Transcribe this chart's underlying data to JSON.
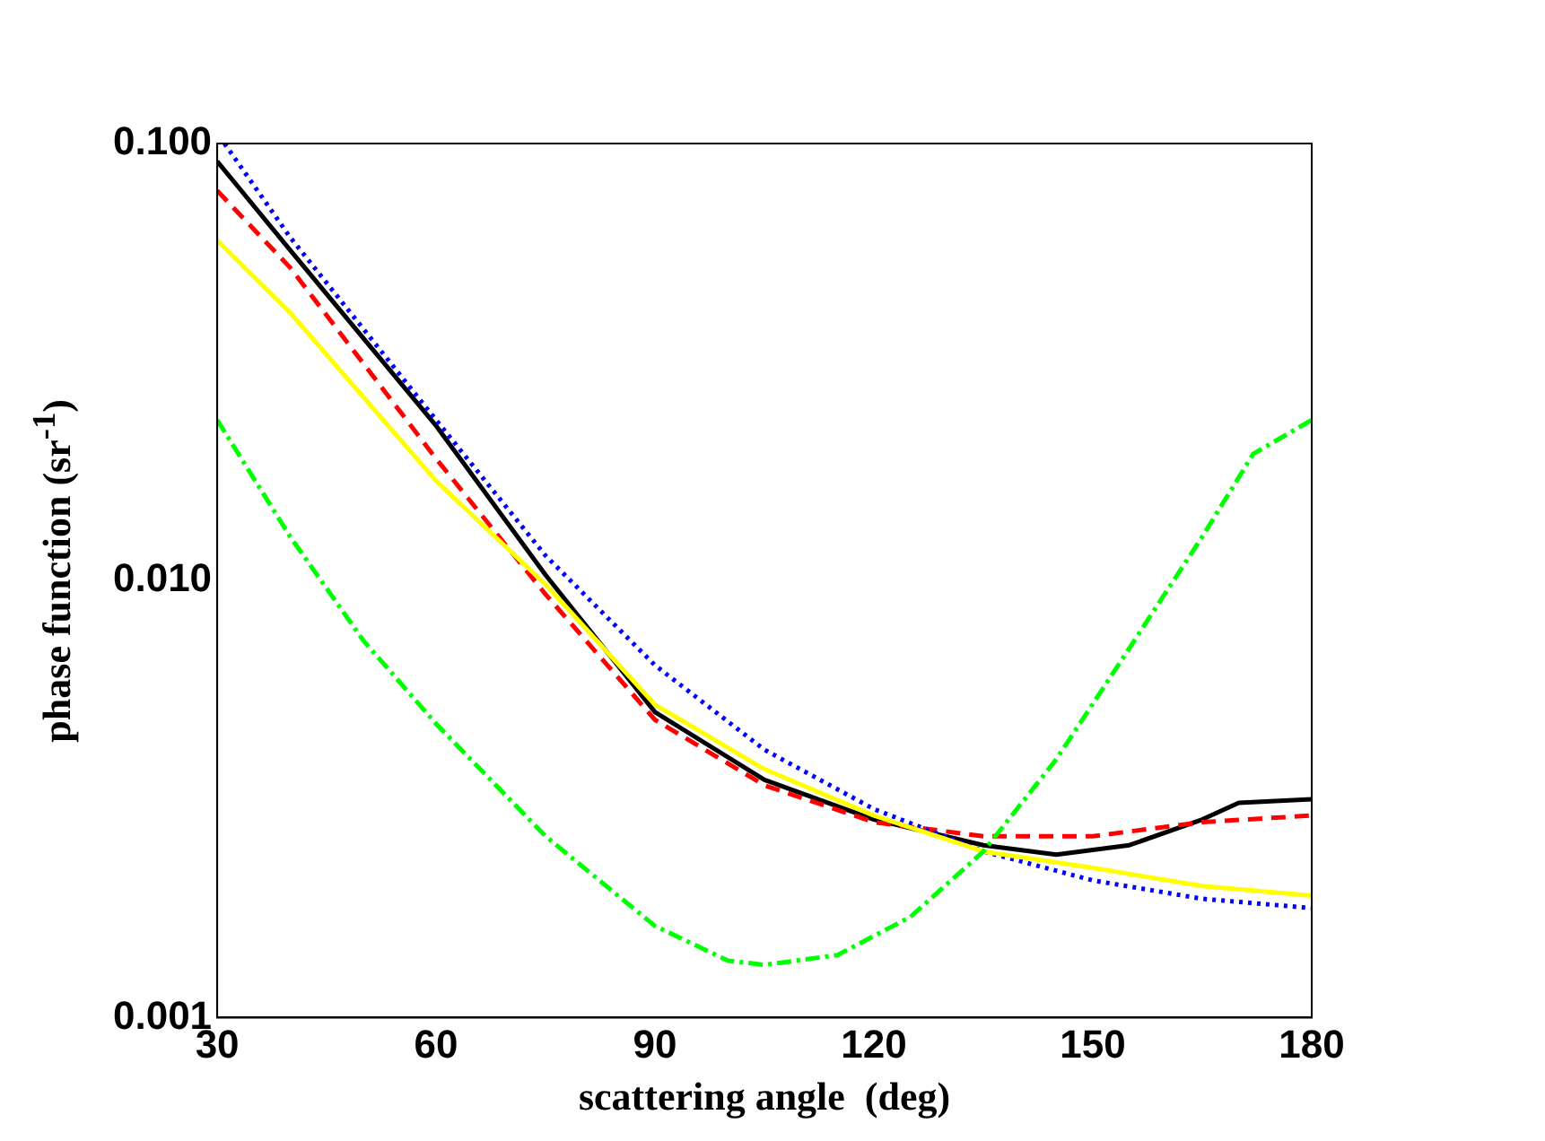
{
  "chart_data": {
    "type": "line",
    "xlabel": "scattering angle  (deg)",
    "ylabel": "phase function  (sr$^{-1}$)",
    "log": "y",
    "grid": false,
    "legend": false,
    "marker": "none",
    "xlim": [
      30,
      180
    ],
    "xticks": [
      30,
      60,
      90,
      120,
      150,
      180
    ],
    "ylim": [
      0.001,
      0.1
    ],
    "yticks": [
      {
        "value": 0.001,
        "label": "0.001"
      },
      {
        "value": 0.01,
        "label": "0.010"
      },
      {
        "value": 0.1,
        "label": "0.100"
      }
    ],
    "series": [
      {
        "color": "#00ff00",
        "line_style": "dashdot",
        "x": [
          30,
          40,
          50,
          60,
          75,
          90,
          100,
          105,
          115,
          125,
          135,
          145,
          155,
          165,
          172,
          180
        ],
        "values": [
          0.0233,
          0.0126,
          0.0073,
          0.0047,
          0.0026,
          0.00162,
          0.00135,
          0.00132,
          0.00139,
          0.0017,
          0.0024,
          0.0039,
          0.007,
          0.0126,
          0.0195,
          0.0233
        ]
      },
      {
        "color": "#ffff00",
        "line_style": "solid",
        "x": [
          30,
          40,
          60,
          75,
          90,
          105,
          120,
          135,
          150,
          165,
          180
        ],
        "values": [
          0.06,
          0.041,
          0.0169,
          0.0098,
          0.0052,
          0.0037,
          0.0029,
          0.0024,
          0.0022,
          0.002,
          0.0019
        ]
      },
      {
        "color": "#0000ff",
        "line_style": "dotted",
        "x": [
          31,
          40,
          60,
          75,
          90,
          105,
          120,
          135,
          150,
          165,
          180
        ],
        "values": [
          0.1,
          0.061,
          0.0233,
          0.0114,
          0.0064,
          0.0041,
          0.003,
          0.0024,
          0.00206,
          0.00187,
          0.00178
        ]
      },
      {
        "color": "#ff0000",
        "line_style": "dashed",
        "x": [
          30,
          40,
          60,
          75,
          90,
          105,
          120,
          135,
          150,
          165,
          180
        ],
        "values": [
          0.078,
          0.052,
          0.019,
          0.0093,
          0.0048,
          0.0034,
          0.0028,
          0.0026,
          0.0026,
          0.0028,
          0.0029
        ]
      },
      {
        "color": "#000000",
        "line_style": "solid",
        "x": [
          30,
          40,
          60,
          75,
          90,
          105,
          120,
          135,
          145,
          155,
          165,
          170,
          180
        ],
        "values": [
          0.091,
          0.057,
          0.0226,
          0.0103,
          0.005,
          0.0035,
          0.00284,
          0.00248,
          0.00236,
          0.00248,
          0.00284,
          0.0031,
          0.00316
        ]
      }
    ]
  }
}
